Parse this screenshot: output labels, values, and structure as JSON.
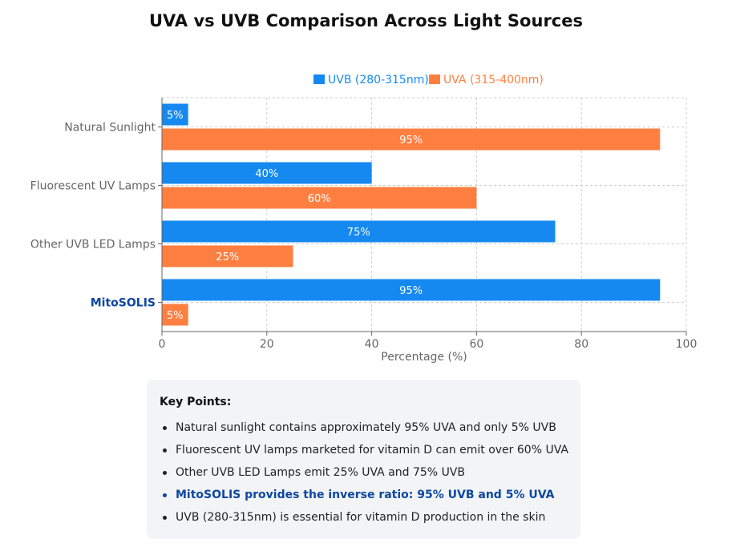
{
  "title": "UVA vs UVB Comparison Across Light Sources",
  "colors": {
    "uvb": "#1589f0",
    "uva": "#ff7f41",
    "highlight": "#0d47a1"
  },
  "chart_data": {
    "type": "bar",
    "orientation": "horizontal",
    "categories": [
      "Natural Sunlight",
      "Fluorescent UV Lamps",
      "Other UVB LED Lamps",
      "MitoSOLIS"
    ],
    "highlight_category": "MitoSOLIS",
    "series": [
      {
        "name": "UVB (280-315nm)",
        "values": [
          5,
          40,
          75,
          95
        ],
        "color": "#1589f0",
        "labels": [
          "5%",
          "40%",
          "75%",
          "95%"
        ]
      },
      {
        "name": "UVA (315-400nm)",
        "values": [
          95,
          60,
          25,
          5
        ],
        "color": "#ff7f41",
        "labels": [
          "95%",
          "60%",
          "25%",
          "5%"
        ]
      }
    ],
    "xlabel": "Percentage (%)",
    "xlim": [
      0,
      100
    ],
    "xticks": [
      0,
      20,
      40,
      60,
      80,
      100
    ],
    "grid": true,
    "legend_position": "top"
  },
  "key_points": {
    "heading": "Key Points:",
    "items": [
      {
        "text": "Natural sunlight contains approximately 95% UVA and only 5% UVB",
        "highlight": false
      },
      {
        "text": "Fluorescent UV lamps marketed for vitamin D can emit over 60% UVA",
        "highlight": false
      },
      {
        "text": "Other UVB LED Lamps emit 25% UVA and 75% UVB",
        "highlight": false
      },
      {
        "text": "MitoSOLIS provides the inverse ratio: 95% UVB and 5% UVA",
        "highlight": true
      },
      {
        "text": "UVB (280-315nm) is essential for vitamin D production in the skin",
        "highlight": false
      }
    ]
  }
}
